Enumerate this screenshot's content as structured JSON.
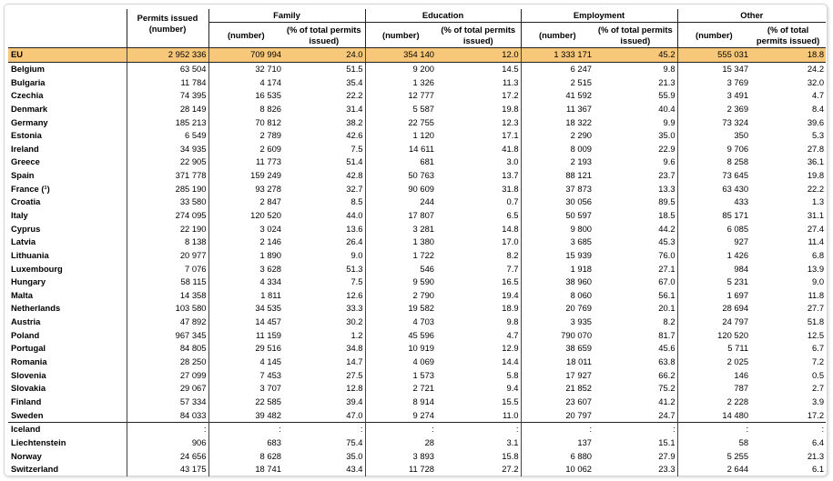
{
  "header": {
    "permits_issued": "Permits issued (number)",
    "groups": [
      "Family",
      "Education",
      "Employment",
      "Other"
    ],
    "sub_number": "(number)",
    "sub_pct": "(% of total permits issued)"
  },
  "rows": [
    [
      "EU",
      "2 952 336",
      "709 994",
      "24.0",
      "354 140",
      "12.0",
      "1 333 171",
      "45.2",
      "555 031",
      "18.8"
    ],
    [
      "Belgium",
      "63 504",
      "32 710",
      "51.5",
      "9 200",
      "14.5",
      "6 247",
      "9.8",
      "15 347",
      "24.2"
    ],
    [
      "Bulgaria",
      "11 784",
      "4 174",
      "35.4",
      "1 326",
      "11.3",
      "2 515",
      "21.3",
      "3 769",
      "32.0"
    ],
    [
      "Czechia",
      "74 395",
      "16 535",
      "22.2",
      "12 777",
      "17.2",
      "41 592",
      "55.9",
      "3 491",
      "4.7"
    ],
    [
      "Denmark",
      "28 149",
      "8 826",
      "31.4",
      "5 587",
      "19.8",
      "11 367",
      "40.4",
      "2 369",
      "8.4"
    ],
    [
      "Germany",
      "185 213",
      "70 812",
      "38.2",
      "22 755",
      "12.3",
      "18 322",
      "9.9",
      "73 324",
      "39.6"
    ],
    [
      "Estonia",
      "6 549",
      "2 789",
      "42.6",
      "1 120",
      "17.1",
      "2 290",
      "35.0",
      "350",
      "5.3"
    ],
    [
      "Ireland",
      "34 935",
      "2 609",
      "7.5",
      "14 611",
      "41.8",
      "8 009",
      "22.9",
      "9 706",
      "27.8"
    ],
    [
      "Greece",
      "22 905",
      "11 773",
      "51.4",
      "681",
      "3.0",
      "2 193",
      "9.6",
      "8 258",
      "36.1"
    ],
    [
      "Spain",
      "371 778",
      "159 249",
      "42.8",
      "50 763",
      "13.7",
      "88 121",
      "23.7",
      "73 645",
      "19.8"
    ],
    [
      "France (¹)",
      "285 190",
      "93 278",
      "32.7",
      "90 609",
      "31.8",
      "37 873",
      "13.3",
      "63 430",
      "22.2"
    ],
    [
      "Croatia",
      "33 580",
      "2 847",
      "8.5",
      "244",
      "0.7",
      "30 056",
      "89.5",
      "433",
      "1.3"
    ],
    [
      "Italy",
      "274 095",
      "120 520",
      "44.0",
      "17 807",
      "6.5",
      "50 597",
      "18.5",
      "85 171",
      "31.1"
    ],
    [
      "Cyprus",
      "22 190",
      "3 024",
      "13.6",
      "3 281",
      "14.8",
      "9 800",
      "44.2",
      "6 085",
      "27.4"
    ],
    [
      "Latvia",
      "8 138",
      "2 146",
      "26.4",
      "1 380",
      "17.0",
      "3 685",
      "45.3",
      "927",
      "11.4"
    ],
    [
      "Lithuania",
      "20 977",
      "1 890",
      "9.0",
      "1 722",
      "8.2",
      "15 939",
      "76.0",
      "1 426",
      "6.8"
    ],
    [
      "Luxembourg",
      "7 076",
      "3 628",
      "51.3",
      "546",
      "7.7",
      "1 918",
      "27.1",
      "984",
      "13.9"
    ],
    [
      "Hungary",
      "58 115",
      "4 334",
      "7.5",
      "9 590",
      "16.5",
      "38 960",
      "67.0",
      "5 231",
      "9.0"
    ],
    [
      "Malta",
      "14 358",
      "1 811",
      "12.6",
      "2 790",
      "19.4",
      "8 060",
      "56.1",
      "1 697",
      "11.8"
    ],
    [
      "Netherlands",
      "103 580",
      "34 535",
      "33.3",
      "19 582",
      "18.9",
      "20 769",
      "20.1",
      "28 694",
      "27.7"
    ],
    [
      "Austria",
      "47 892",
      "14 457",
      "30.2",
      "4 703",
      "9.8",
      "3 935",
      "8.2",
      "24 797",
      "51.8"
    ],
    [
      "Poland",
      "967 345",
      "11 159",
      "1.2",
      "45 596",
      "4.7",
      "790 070",
      "81.7",
      "120 520",
      "12.5"
    ],
    [
      "Portugal",
      "84 805",
      "29 516",
      "34.8",
      "10 919",
      "12.9",
      "38 659",
      "45.6",
      "5 711",
      "6.7"
    ],
    [
      "Romania",
      "28 250",
      "4 145",
      "14.7",
      "4 069",
      "14.4",
      "18 011",
      "63.8",
      "2 025",
      "7.2"
    ],
    [
      "Slovenia",
      "27 099",
      "7 453",
      "27.5",
      "1 573",
      "5.8",
      "17 927",
      "66.2",
      "146",
      "0.5"
    ],
    [
      "Slovakia",
      "29 067",
      "3 707",
      "12.8",
      "2 721",
      "9.4",
      "21 852",
      "75.2",
      "787",
      "2.7"
    ],
    [
      "Finland",
      "57 334",
      "22 585",
      "39.4",
      "8 914",
      "15.5",
      "23 607",
      "41.2",
      "2 228",
      "3.9"
    ],
    [
      "Sweden",
      "84 033",
      "39 482",
      "47.0",
      "9 274",
      "11.0",
      "20 797",
      "24.7",
      "14 480",
      "17.2"
    ],
    [
      "Iceland",
      ":",
      ":",
      ":",
      ":",
      ":",
      ":",
      ":",
      ":",
      ":"
    ],
    [
      "Liechtenstein",
      "906",
      "683",
      "75.4",
      "28",
      "3.1",
      "137",
      "15.1",
      "58",
      "6.4"
    ],
    [
      "Norway",
      "24 656",
      "8 628",
      "35.0",
      "3 893",
      "15.8",
      "6 880",
      "27.9",
      "5 255",
      "21.3"
    ],
    [
      "Switzerland",
      "43 175",
      "18 741",
      "43.4",
      "11 728",
      "27.2",
      "10 062",
      "23.3",
      "2 644",
      "6.1"
    ]
  ],
  "highlight_color": "#f8c87a"
}
